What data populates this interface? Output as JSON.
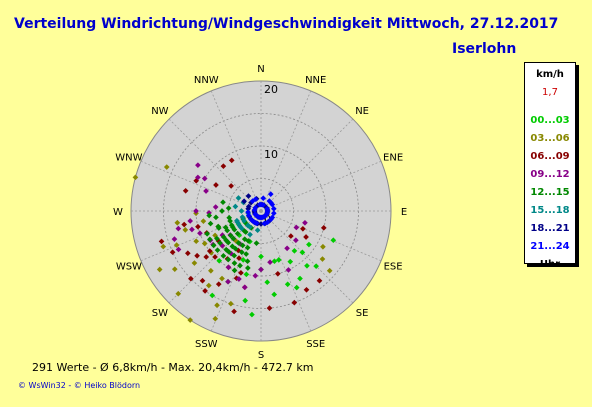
{
  "header": {
    "title": "Verteilung Windrichtung/Windgeschwindigkeit  Mittwoch, 27.12.2017",
    "station": "Iserlohn"
  },
  "legend": {
    "unit": "km/h",
    "current": "1,7",
    "footer": "Uhr",
    "items": [
      {
        "label": "00...03",
        "color": "#00cc00"
      },
      {
        "label": "03...06",
        "color": "#888800"
      },
      {
        "label": "06...09",
        "color": "#880000"
      },
      {
        "label": "09...12",
        "color": "#880088"
      },
      {
        "label": "12...15",
        "color": "#008800"
      },
      {
        "label": "15...18",
        "color": "#008888"
      },
      {
        "label": "18...21",
        "color": "#000088"
      },
      {
        "label": "21...24",
        "color": "#0000ff"
      }
    ]
  },
  "footer": {
    "stats": "291 Werte   -   Ø 6,8km/h  -  Max. 20,4km/h   -   472.7 km",
    "copyright": "© WsWin32  -  © Heiko Blödorn"
  },
  "chart_data": {
    "type": "scatter",
    "subtype": "polar wind rose",
    "directions": [
      "N",
      "NNE",
      "NE",
      "ENE",
      "E",
      "ESE",
      "SE",
      "SSE",
      "S",
      "SSW",
      "SW",
      "WSW",
      "W",
      "WNW",
      "NW",
      "NNW"
    ],
    "radial_ticks": [
      "0",
      "10",
      "20"
    ],
    "rlim": [
      0,
      20
    ],
    "grid": true,
    "series": [
      {
        "label": "00...03",
        "color": "#00cc00",
        "points": [
          [
            135,
            9
          ],
          [
            180,
            9
          ],
          [
            160,
            12
          ],
          [
            150,
            9
          ],
          [
            171,
            13
          ],
          [
            165,
            8
          ],
          [
            193,
            10
          ],
          [
            200,
            8
          ],
          [
            205,
            12
          ],
          [
            155,
            13
          ],
          [
            190,
            14
          ],
          [
            150,
            12
          ],
          [
            112,
            12
          ],
          [
            125,
            9
          ],
          [
            140,
            11
          ],
          [
            175,
            11
          ],
          [
            135,
            12
          ],
          [
            215,
            6
          ],
          [
            222,
            5
          ],
          [
            232,
            3
          ],
          [
            240,
            4
          ],
          [
            200,
            5
          ],
          [
            180,
            7
          ],
          [
            160,
            8
          ],
          [
            140,
            8
          ],
          [
            210,
            15
          ],
          [
            185,
            16
          ],
          [
            220,
            10
          ]
        ]
      },
      {
        "label": "03...06",
        "color": "#888800",
        "points": [
          [
            285,
            20
          ],
          [
            295,
            16
          ],
          [
            245,
            11
          ],
          [
            220,
            12
          ],
          [
            215,
            14
          ],
          [
            232,
            13
          ],
          [
            256,
            12
          ],
          [
            225,
            18
          ],
          [
            240,
            18
          ],
          [
            198,
            15
          ],
          [
            205,
            16
          ],
          [
            120,
            11
          ],
          [
            128,
            12
          ],
          [
            131,
            14
          ],
          [
            250,
            7
          ],
          [
            240,
            10
          ],
          [
            228,
            8
          ],
          [
            210,
            12
          ],
          [
            220,
            6
          ],
          [
            213,
            20
          ],
          [
            236,
            16
          ],
          [
            250,
            16
          ],
          [
            260,
            9
          ],
          [
            268,
            10
          ],
          [
            203,
            18
          ],
          [
            248,
            14
          ],
          [
            230,
            10
          ],
          [
            242,
            8
          ],
          [
            262,
            13
          ]
        ]
      },
      {
        "label": "06...09",
        "color": "#880000",
        "points": [
          [
            260,
            12
          ],
          [
            285,
            12
          ],
          [
            295,
            11
          ],
          [
            300,
            8
          ],
          [
            320,
            9
          ],
          [
            330,
            9
          ],
          [
            310,
            6
          ],
          [
            253,
            16
          ],
          [
            240,
            13
          ],
          [
            230,
            11
          ],
          [
            235,
            12
          ],
          [
            215,
            15
          ],
          [
            210,
            13
          ],
          [
            220,
            14
          ],
          [
            192,
            12
          ],
          [
            195,
            16
          ],
          [
            200,
            11
          ],
          [
            175,
            15
          ],
          [
            140,
            14
          ],
          [
            150,
            14
          ],
          [
            120,
            8
          ],
          [
            113,
            7
          ],
          [
            130,
            6
          ],
          [
            105,
            10
          ],
          [
            160,
            15
          ],
          [
            165,
            10
          ],
          [
            245,
            15
          ],
          [
            226,
            15
          ],
          [
            210,
            10
          ],
          [
            205,
            8
          ],
          [
            248,
            9
          ],
          [
            235,
            8
          ],
          [
            225,
            10
          ],
          [
            210,
            7
          ],
          [
            215,
            9
          ],
          [
            198,
            10
          ],
          [
            232,
            10
          ],
          [
            256,
            10
          ]
        ]
      },
      {
        "label": "09...12",
        "color": "#880088",
        "points": [
          [
            306,
            12
          ],
          [
            298,
            11
          ],
          [
            270,
            10
          ],
          [
            258,
            13
          ],
          [
            245,
            14
          ],
          [
            255,
            11
          ],
          [
            240,
            9
          ],
          [
            238,
            7
          ],
          [
            232,
            6
          ],
          [
            228,
            8
          ],
          [
            220,
            8
          ],
          [
            215,
            8
          ],
          [
            210,
            10
          ],
          [
            205,
            12
          ],
          [
            198,
            11
          ],
          [
            192,
            12
          ],
          [
            185,
            10
          ],
          [
            180,
            9
          ],
          [
            170,
            8
          ],
          [
            155,
            10
          ],
          [
            145,
            7
          ],
          [
            130,
            7
          ],
          [
            115,
            6
          ],
          [
            105,
            7
          ],
          [
            250,
            10
          ],
          [
            262,
            11
          ],
          [
            268,
            8
          ],
          [
            275,
            7
          ],
          [
            290,
            9
          ],
          [
            300,
            10
          ],
          [
            252,
            14
          ],
          [
            235,
            9
          ],
          [
            225,
            6
          ],
          [
            212,
            6
          ]
        ]
      },
      {
        "label": "12...15",
        "color": "#008800",
        "points": [
          [
            250,
            7
          ],
          [
            245,
            6
          ],
          [
            240,
            6
          ],
          [
            235,
            5
          ],
          [
            230,
            7
          ],
          [
            225,
            6
          ],
          [
            220,
            4
          ],
          [
            215,
            6
          ],
          [
            210,
            5
          ],
          [
            205,
            7
          ],
          [
            200,
            6
          ],
          [
            195,
            8
          ],
          [
            238,
            8
          ],
          [
            232,
            8
          ],
          [
            228,
            7
          ],
          [
            222,
            8
          ],
          [
            218,
            8
          ],
          [
            214,
            7
          ],
          [
            207,
            9
          ],
          [
            201,
            9
          ],
          [
            262,
            7
          ],
          [
            256,
            8
          ],
          [
            248,
            7
          ],
          [
            244,
            5
          ],
          [
            236,
            3
          ],
          [
            226,
            5
          ],
          [
            216,
            4
          ],
          [
            247,
            9
          ],
          [
            241,
            9
          ],
          [
            234,
            9
          ],
          [
            208,
            6
          ],
          [
            203,
            5
          ],
          [
            199,
            7
          ],
          [
            193,
            9
          ],
          [
            188,
            5
          ],
          [
            210,
            3
          ],
          [
            224,
            3
          ],
          [
            258,
            5
          ],
          [
            252,
            5
          ],
          [
            246,
            3
          ],
          [
            240,
            5
          ],
          [
            235,
            7
          ],
          [
            228,
            9
          ],
          [
            220,
            9
          ],
          [
            214,
            9
          ],
          [
            204,
            10
          ],
          [
            265,
            8
          ],
          [
            270,
            6
          ],
          [
            275,
            5
          ],
          [
            283,
            6
          ],
          [
            231,
            6
          ],
          [
            226,
            7
          ],
          [
            219,
            7
          ],
          [
            211,
            8
          ]
        ]
      },
      {
        "label": "15...18",
        "color": "#008888",
        "points": [
          [
            300,
            4
          ],
          [
            296,
            3
          ],
          [
            270,
            3
          ],
          [
            260,
            2
          ],
          [
            250,
            2
          ],
          [
            240,
            3
          ],
          [
            230,
            2
          ],
          [
            220,
            2
          ],
          [
            210,
            2
          ],
          [
            200,
            2
          ],
          [
            190,
            3
          ],
          [
            280,
            4
          ],
          [
            252,
            3
          ],
          [
            244,
            4
          ],
          [
            236,
            4
          ],
          [
            232,
            4
          ],
          [
            228,
            4
          ],
          [
            222,
            3
          ],
          [
            215,
            3
          ],
          [
            205,
            4
          ],
          [
            248,
            4
          ],
          [
            242,
            2
          ],
          [
            234,
            2
          ]
        ]
      },
      {
        "label": "18...21",
        "color": "#000088",
        "points": [
          [
            320,
            3
          ],
          [
            340,
            2
          ],
          [
            10,
            1
          ],
          [
            30,
            1
          ],
          [
            60,
            1
          ],
          [
            80,
            1
          ],
          [
            120,
            1
          ],
          [
            150,
            1
          ],
          [
            170,
            1
          ],
          [
            190,
            1
          ],
          [
            200,
            1
          ],
          [
            230,
            1
          ],
          [
            260,
            1
          ],
          [
            290,
            2
          ],
          [
            310,
            2
          ],
          [
            330,
            1
          ],
          [
            300,
            3
          ],
          [
            280,
            2
          ],
          [
            245,
            2
          ],
          [
            225,
            2
          ],
          [
            215,
            2
          ],
          [
            205,
            2
          ],
          [
            195,
            2
          ],
          [
            180,
            2
          ],
          [
            160,
            2
          ],
          [
            140,
            2
          ],
          [
            100,
            1
          ],
          [
            270,
            1
          ],
          [
            250,
            1
          ],
          [
            220,
            1
          ]
        ]
      },
      {
        "label": "21...24",
        "color": "#0000ff",
        "points": [
          [
            20,
            1
          ],
          [
            40,
            2
          ],
          [
            70,
            1
          ],
          [
            90,
            1
          ],
          [
            110,
            1
          ],
          [
            130,
            1
          ],
          [
            140,
            1
          ],
          [
            160,
            1
          ],
          [
            175,
            1
          ],
          [
            185,
            1
          ],
          [
            205,
            1
          ],
          [
            215,
            1
          ],
          [
            240,
            1
          ],
          [
            250,
            2
          ],
          [
            265,
            2
          ],
          [
            280,
            1
          ],
          [
            300,
            1
          ],
          [
            320,
            2
          ],
          [
            335,
            2
          ],
          [
            350,
            1
          ],
          [
            0,
            1
          ],
          [
            10,
            2
          ],
          [
            30,
            3
          ],
          [
            50,
            2
          ],
          [
            60,
            2
          ],
          [
            80,
            2
          ],
          [
            100,
            2
          ],
          [
            120,
            2
          ],
          [
            130,
            2
          ],
          [
            150,
            2
          ],
          [
            165,
            2
          ],
          [
            200,
            2
          ],
          [
            210,
            2
          ],
          [
            220,
            2
          ],
          [
            230,
            2
          ]
        ]
      }
    ]
  }
}
